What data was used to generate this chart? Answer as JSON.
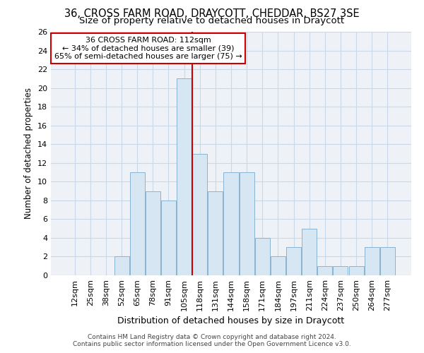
{
  "title1": "36, CROSS FARM ROAD, DRAYCOTT, CHEDDAR, BS27 3SE",
  "title2": "Size of property relative to detached houses in Draycott",
  "xlabel": "Distribution of detached houses by size in Draycott",
  "ylabel": "Number of detached properties",
  "footnote1": "Contains HM Land Registry data © Crown copyright and database right 2024.",
  "footnote2": "Contains public sector information licensed under the Open Government Licence v3.0.",
  "bar_labels": [
    "12sqm",
    "25sqm",
    "38sqm",
    "52sqm",
    "65sqm",
    "78sqm",
    "91sqm",
    "105sqm",
    "118sqm",
    "131sqm",
    "144sqm",
    "158sqm",
    "171sqm",
    "184sqm",
    "197sqm",
    "211sqm",
    "224sqm",
    "237sqm",
    "250sqm",
    "264sqm",
    "277sqm"
  ],
  "bar_values": [
    0,
    0,
    0,
    2,
    11,
    9,
    8,
    21,
    13,
    9,
    11,
    11,
    4,
    2,
    3,
    5,
    1,
    1,
    1,
    3,
    3
  ],
  "bar_color": "#d6e6f2",
  "bar_edge_color": "#8ab4d4",
  "vline_x": 7.5,
  "annotation_text_line1": "36 CROSS FARM ROAD: 112sqm",
  "annotation_text_line2": "← 34% of detached houses are smaller (39)",
  "annotation_text_line3": "65% of semi-detached houses are larger (75) →",
  "vline_color": "#cc0000",
  "annotation_box_edge_color": "#cc0000",
  "ylim": [
    0,
    26
  ],
  "yticks": [
    0,
    2,
    4,
    6,
    8,
    10,
    12,
    14,
    16,
    18,
    20,
    22,
    24,
    26
  ],
  "grid_color": "#c8d8e8",
  "bg_color": "#eef2f7",
  "title1_fontsize": 10.5,
  "title2_fontsize": 9.5,
  "xlabel_fontsize": 9,
  "ylabel_fontsize": 8.5,
  "tick_fontsize": 8,
  "annotation_fontsize": 8
}
